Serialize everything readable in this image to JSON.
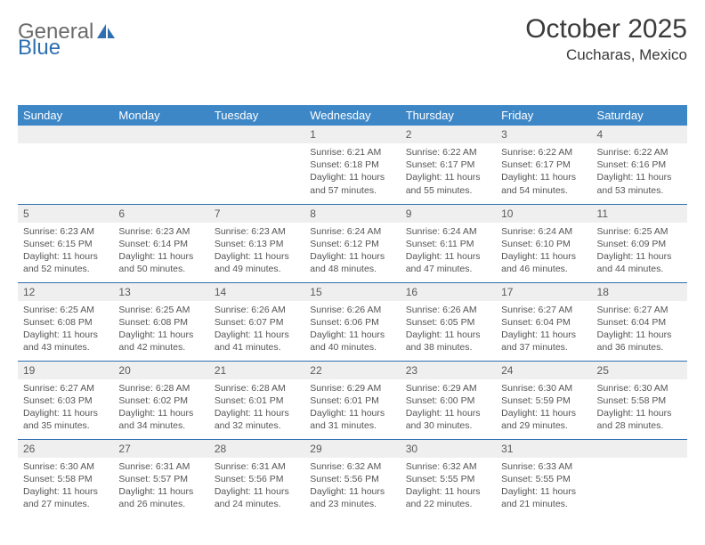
{
  "logo": {
    "word1": "General",
    "word2": "Blue"
  },
  "title": "October 2025",
  "location": "Cucharas, Mexico",
  "colors": {
    "header_bg": "#3d87c7",
    "header_text": "#ffffff",
    "row_border": "#2f6fb0",
    "daynum_bg": "#efefef",
    "logo_gray": "#6b6b6b",
    "logo_blue": "#2f6fb0"
  },
  "weekdays": [
    "Sunday",
    "Monday",
    "Tuesday",
    "Wednesday",
    "Thursday",
    "Friday",
    "Saturday"
  ],
  "weeks": [
    [
      null,
      null,
      null,
      {
        "n": "1",
        "sr": "Sunrise: 6:21 AM",
        "ss": "Sunset: 6:18 PM",
        "dl": "Daylight: 11 hours and 57 minutes."
      },
      {
        "n": "2",
        "sr": "Sunrise: 6:22 AM",
        "ss": "Sunset: 6:17 PM",
        "dl": "Daylight: 11 hours and 55 minutes."
      },
      {
        "n": "3",
        "sr": "Sunrise: 6:22 AM",
        "ss": "Sunset: 6:17 PM",
        "dl": "Daylight: 11 hours and 54 minutes."
      },
      {
        "n": "4",
        "sr": "Sunrise: 6:22 AM",
        "ss": "Sunset: 6:16 PM",
        "dl": "Daylight: 11 hours and 53 minutes."
      }
    ],
    [
      {
        "n": "5",
        "sr": "Sunrise: 6:23 AM",
        "ss": "Sunset: 6:15 PM",
        "dl": "Daylight: 11 hours and 52 minutes."
      },
      {
        "n": "6",
        "sr": "Sunrise: 6:23 AM",
        "ss": "Sunset: 6:14 PM",
        "dl": "Daylight: 11 hours and 50 minutes."
      },
      {
        "n": "7",
        "sr": "Sunrise: 6:23 AM",
        "ss": "Sunset: 6:13 PM",
        "dl": "Daylight: 11 hours and 49 minutes."
      },
      {
        "n": "8",
        "sr": "Sunrise: 6:24 AM",
        "ss": "Sunset: 6:12 PM",
        "dl": "Daylight: 11 hours and 48 minutes."
      },
      {
        "n": "9",
        "sr": "Sunrise: 6:24 AM",
        "ss": "Sunset: 6:11 PM",
        "dl": "Daylight: 11 hours and 47 minutes."
      },
      {
        "n": "10",
        "sr": "Sunrise: 6:24 AM",
        "ss": "Sunset: 6:10 PM",
        "dl": "Daylight: 11 hours and 46 minutes."
      },
      {
        "n": "11",
        "sr": "Sunrise: 6:25 AM",
        "ss": "Sunset: 6:09 PM",
        "dl": "Daylight: 11 hours and 44 minutes."
      }
    ],
    [
      {
        "n": "12",
        "sr": "Sunrise: 6:25 AM",
        "ss": "Sunset: 6:08 PM",
        "dl": "Daylight: 11 hours and 43 minutes."
      },
      {
        "n": "13",
        "sr": "Sunrise: 6:25 AM",
        "ss": "Sunset: 6:08 PM",
        "dl": "Daylight: 11 hours and 42 minutes."
      },
      {
        "n": "14",
        "sr": "Sunrise: 6:26 AM",
        "ss": "Sunset: 6:07 PM",
        "dl": "Daylight: 11 hours and 41 minutes."
      },
      {
        "n": "15",
        "sr": "Sunrise: 6:26 AM",
        "ss": "Sunset: 6:06 PM",
        "dl": "Daylight: 11 hours and 40 minutes."
      },
      {
        "n": "16",
        "sr": "Sunrise: 6:26 AM",
        "ss": "Sunset: 6:05 PM",
        "dl": "Daylight: 11 hours and 38 minutes."
      },
      {
        "n": "17",
        "sr": "Sunrise: 6:27 AM",
        "ss": "Sunset: 6:04 PM",
        "dl": "Daylight: 11 hours and 37 minutes."
      },
      {
        "n": "18",
        "sr": "Sunrise: 6:27 AM",
        "ss": "Sunset: 6:04 PM",
        "dl": "Daylight: 11 hours and 36 minutes."
      }
    ],
    [
      {
        "n": "19",
        "sr": "Sunrise: 6:27 AM",
        "ss": "Sunset: 6:03 PM",
        "dl": "Daylight: 11 hours and 35 minutes."
      },
      {
        "n": "20",
        "sr": "Sunrise: 6:28 AM",
        "ss": "Sunset: 6:02 PM",
        "dl": "Daylight: 11 hours and 34 minutes."
      },
      {
        "n": "21",
        "sr": "Sunrise: 6:28 AM",
        "ss": "Sunset: 6:01 PM",
        "dl": "Daylight: 11 hours and 32 minutes."
      },
      {
        "n": "22",
        "sr": "Sunrise: 6:29 AM",
        "ss": "Sunset: 6:01 PM",
        "dl": "Daylight: 11 hours and 31 minutes."
      },
      {
        "n": "23",
        "sr": "Sunrise: 6:29 AM",
        "ss": "Sunset: 6:00 PM",
        "dl": "Daylight: 11 hours and 30 minutes."
      },
      {
        "n": "24",
        "sr": "Sunrise: 6:30 AM",
        "ss": "Sunset: 5:59 PM",
        "dl": "Daylight: 11 hours and 29 minutes."
      },
      {
        "n": "25",
        "sr": "Sunrise: 6:30 AM",
        "ss": "Sunset: 5:58 PM",
        "dl": "Daylight: 11 hours and 28 minutes."
      }
    ],
    [
      {
        "n": "26",
        "sr": "Sunrise: 6:30 AM",
        "ss": "Sunset: 5:58 PM",
        "dl": "Daylight: 11 hours and 27 minutes."
      },
      {
        "n": "27",
        "sr": "Sunrise: 6:31 AM",
        "ss": "Sunset: 5:57 PM",
        "dl": "Daylight: 11 hours and 26 minutes."
      },
      {
        "n": "28",
        "sr": "Sunrise: 6:31 AM",
        "ss": "Sunset: 5:56 PM",
        "dl": "Daylight: 11 hours and 24 minutes."
      },
      {
        "n": "29",
        "sr": "Sunrise: 6:32 AM",
        "ss": "Sunset: 5:56 PM",
        "dl": "Daylight: 11 hours and 23 minutes."
      },
      {
        "n": "30",
        "sr": "Sunrise: 6:32 AM",
        "ss": "Sunset: 5:55 PM",
        "dl": "Daylight: 11 hours and 22 minutes."
      },
      {
        "n": "31",
        "sr": "Sunrise: 6:33 AM",
        "ss": "Sunset: 5:55 PM",
        "dl": "Daylight: 11 hours and 21 minutes."
      },
      null
    ]
  ]
}
